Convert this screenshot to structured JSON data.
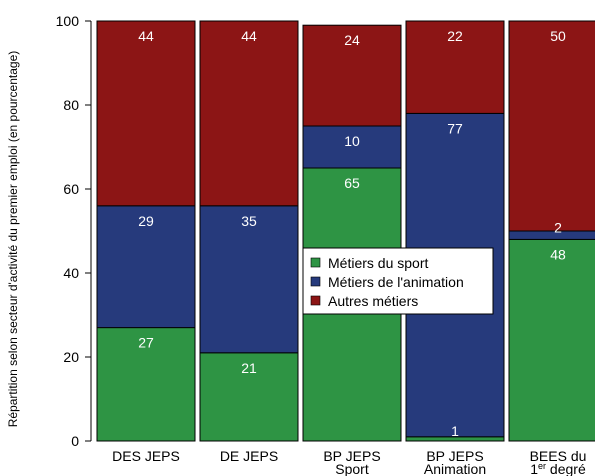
{
  "chart_data": {
    "type": "bar",
    "stacked": true,
    "categories": [
      "DES JEPS",
      "DE JEPS",
      "BP JEPS Sport",
      "BP JEPS Animation",
      "BEES du 1er degré"
    ],
    "category_lines": [
      [
        "DES JEPS"
      ],
      [
        "DE JEPS"
      ],
      [
        "BP JEPS",
        "Sport"
      ],
      [
        "BP JEPS",
        "Animation"
      ],
      [
        "BEES du",
        "1er degré"
      ]
    ],
    "series": [
      {
        "name": "Métiers du sport",
        "color": "#2e9444",
        "values": [
          27,
          21,
          65,
          1,
          48
        ]
      },
      {
        "name": "Métiers de l'animation",
        "color": "#263a7c",
        "values": [
          29,
          35,
          10,
          77,
          2
        ]
      },
      {
        "name": "Autres métiers",
        "color": "#8c1515",
        "values": [
          44,
          44,
          24,
          22,
          50
        ]
      }
    ],
    "ylabel": "Répartition selon secteur d'activité du premier emploi (en pourcentage)",
    "xlabel": "",
    "title": "",
    "ylim": [
      0,
      100
    ],
    "yticks": [
      0,
      20,
      40,
      60,
      80,
      100
    ],
    "legend_position": "center-right",
    "grid": false
  }
}
